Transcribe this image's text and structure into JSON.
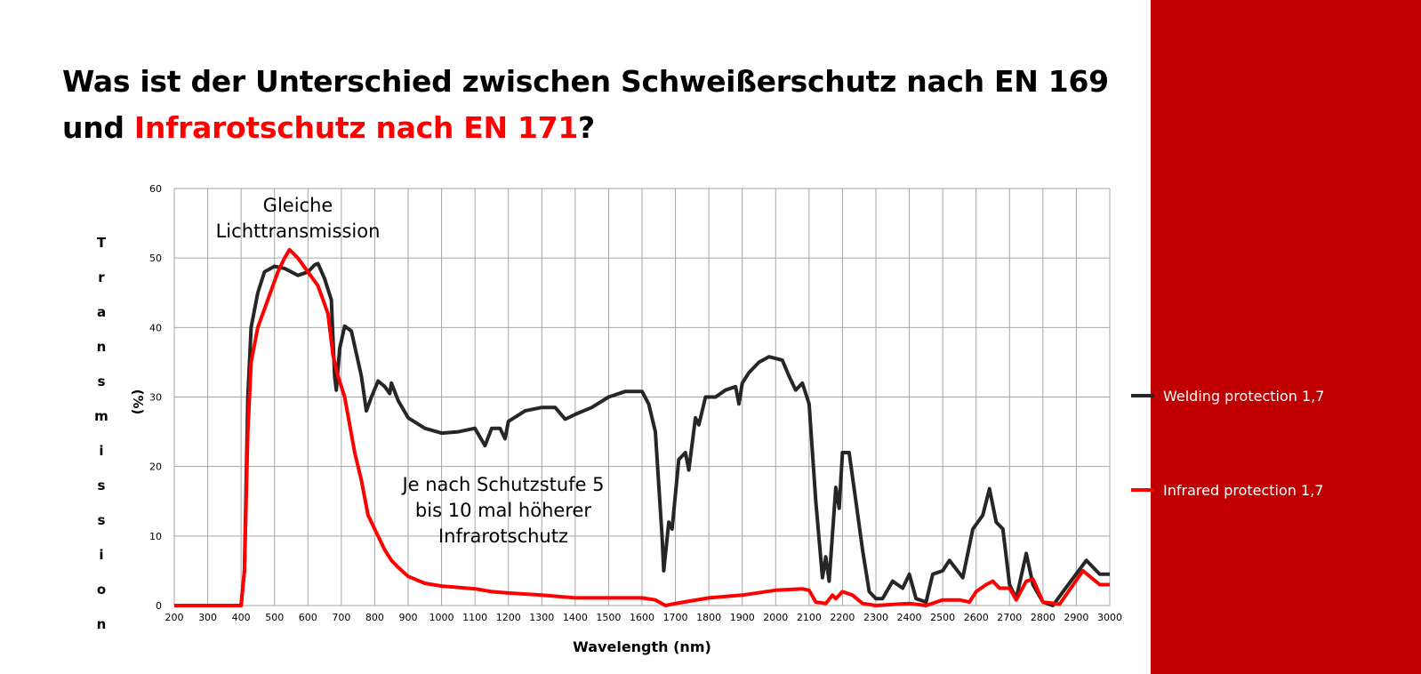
{
  "slide": {
    "title_line1": "Was ist der Unterschied zwischen Schweißerschutz nach EN 169",
    "title_line2_prefix": "und ",
    "title_line2_highlight": "Infrarotschutz nach EN 171",
    "title_line2_suffix": "?",
    "accent_color": "#c00000",
    "highlight_color": "#ff0000"
  },
  "chart_data": {
    "type": "line",
    "xlabel": "Wavelength (nm)",
    "ylabel": "Transmission",
    "ylabel_unit": "(%)",
    "xlim": [
      200,
      3000
    ],
    "ylim": [
      0,
      60
    ],
    "grid": true,
    "legend_placement": "right",
    "x_ticks": [
      200,
      300,
      400,
      500,
      600,
      700,
      800,
      900,
      1000,
      1100,
      1200,
      1300,
      1400,
      1500,
      1600,
      1700,
      1800,
      1900,
      2000,
      2100,
      2200,
      2300,
      2400,
      2500,
      2600,
      2700,
      2800,
      2900,
      3000
    ],
    "y_ticks": [
      0,
      10,
      20,
      30,
      40,
      50,
      60
    ],
    "annotations": [
      {
        "lines": [
          "Gleiche",
          "Lichttransmission"
        ]
      },
      {
        "lines": [
          "Je nach Schutzstufe 5",
          "bis 10 mal höherer",
          "Infrarotschutz"
        ]
      }
    ],
    "series": [
      {
        "name": "Welding protection 1,7",
        "color": "#262626",
        "points": [
          [
            200,
            0
          ],
          [
            400,
            0
          ],
          [
            410,
            5
          ],
          [
            420,
            30
          ],
          [
            430,
            40
          ],
          [
            450,
            45
          ],
          [
            470,
            48
          ],
          [
            500,
            48.8
          ],
          [
            530,
            48.5
          ],
          [
            570,
            47.5
          ],
          [
            600,
            48
          ],
          [
            620,
            49
          ],
          [
            630,
            49.2
          ],
          [
            650,
            47
          ],
          [
            670,
            44
          ],
          [
            680,
            33
          ],
          [
            685,
            31
          ],
          [
            695,
            37
          ],
          [
            710,
            40.2
          ],
          [
            730,
            39.5
          ],
          [
            760,
            33
          ],
          [
            775,
            28
          ],
          [
            790,
            30
          ],
          [
            810,
            32.3
          ],
          [
            830,
            31.5
          ],
          [
            845,
            30.5
          ],
          [
            850,
            32
          ],
          [
            870,
            29.5
          ],
          [
            900,
            27
          ],
          [
            950,
            25.5
          ],
          [
            1000,
            24.8
          ],
          [
            1050,
            25
          ],
          [
            1100,
            25.5
          ],
          [
            1130,
            23
          ],
          [
            1150,
            25.5
          ],
          [
            1175,
            25.5
          ],
          [
            1190,
            24
          ],
          [
            1200,
            26.5
          ],
          [
            1250,
            28
          ],
          [
            1300,
            28.5
          ],
          [
            1340,
            28.5
          ],
          [
            1370,
            26.8
          ],
          [
            1400,
            27.5
          ],
          [
            1450,
            28.5
          ],
          [
            1500,
            30
          ],
          [
            1550,
            30.8
          ],
          [
            1600,
            30.8
          ],
          [
            1620,
            29
          ],
          [
            1640,
            25
          ],
          [
            1660,
            10
          ],
          [
            1665,
            5
          ],
          [
            1680,
            12
          ],
          [
            1690,
            11
          ],
          [
            1710,
            21
          ],
          [
            1730,
            22
          ],
          [
            1740,
            19.5
          ],
          [
            1760,
            27
          ],
          [
            1770,
            26
          ],
          [
            1790,
            30
          ],
          [
            1820,
            30
          ],
          [
            1850,
            31
          ],
          [
            1880,
            31.5
          ],
          [
            1890,
            29
          ],
          [
            1900,
            32
          ],
          [
            1920,
            33.5
          ],
          [
            1950,
            35
          ],
          [
            1980,
            35.8
          ],
          [
            2020,
            35.3
          ],
          [
            2040,
            33
          ],
          [
            2060,
            31
          ],
          [
            2080,
            32
          ],
          [
            2100,
            29
          ],
          [
            2120,
            15
          ],
          [
            2140,
            4
          ],
          [
            2150,
            7
          ],
          [
            2160,
            3.5
          ],
          [
            2180,
            17
          ],
          [
            2190,
            14
          ],
          [
            2200,
            22
          ],
          [
            2220,
            22
          ],
          [
            2240,
            15
          ],
          [
            2260,
            8
          ],
          [
            2280,
            2
          ],
          [
            2300,
            1
          ],
          [
            2320,
            1
          ],
          [
            2350,
            3.5
          ],
          [
            2380,
            2.5
          ],
          [
            2400,
            4.5
          ],
          [
            2420,
            1
          ],
          [
            2450,
            0.5
          ],
          [
            2470,
            4.5
          ],
          [
            2500,
            5
          ],
          [
            2520,
            6.5
          ],
          [
            2560,
            4
          ],
          [
            2590,
            11
          ],
          [
            2620,
            13
          ],
          [
            2640,
            16.8
          ],
          [
            2660,
            12
          ],
          [
            2680,
            11
          ],
          [
            2700,
            3
          ],
          [
            2720,
            1
          ],
          [
            2750,
            7.5
          ],
          [
            2770,
            3
          ],
          [
            2800,
            0.5
          ],
          [
            2830,
            0
          ],
          [
            2860,
            2
          ],
          [
            2930,
            6.5
          ],
          [
            2970,
            4.5
          ],
          [
            3000,
            4.5
          ]
        ]
      },
      {
        "name": "Infrared protection 1,7",
        "color": "#ff0000",
        "points": [
          [
            200,
            0
          ],
          [
            400,
            0
          ],
          [
            410,
            5
          ],
          [
            420,
            25
          ],
          [
            430,
            35
          ],
          [
            450,
            40
          ],
          [
            480,
            44
          ],
          [
            510,
            48
          ],
          [
            530,
            50
          ],
          [
            545,
            51.2
          ],
          [
            570,
            50
          ],
          [
            600,
            48
          ],
          [
            630,
            46
          ],
          [
            660,
            42
          ],
          [
            675,
            36
          ],
          [
            690,
            33
          ],
          [
            710,
            30
          ],
          [
            740,
            22
          ],
          [
            760,
            18
          ],
          [
            780,
            13
          ],
          [
            800,
            11
          ],
          [
            830,
            8
          ],
          [
            850,
            6.5
          ],
          [
            870,
            5.5
          ],
          [
            900,
            4.2
          ],
          [
            950,
            3.2
          ],
          [
            1000,
            2.8
          ],
          [
            1100,
            2.4
          ],
          [
            1150,
            2
          ],
          [
            1200,
            1.8
          ],
          [
            1300,
            1.5
          ],
          [
            1400,
            1.1
          ],
          [
            1600,
            1.1
          ],
          [
            1640,
            0.8
          ],
          [
            1670,
            0
          ],
          [
            1700,
            0.3
          ],
          [
            1800,
            1.1
          ],
          [
            1900,
            1.5
          ],
          [
            2000,
            2.2
          ],
          [
            2080,
            2.4
          ],
          [
            2100,
            2.2
          ],
          [
            2120,
            0.5
          ],
          [
            2150,
            0.3
          ],
          [
            2170,
            1.5
          ],
          [
            2180,
            1
          ],
          [
            2200,
            2
          ],
          [
            2230,
            1.5
          ],
          [
            2260,
            0.3
          ],
          [
            2300,
            0
          ],
          [
            2400,
            0.3
          ],
          [
            2450,
            0
          ],
          [
            2500,
            0.8
          ],
          [
            2550,
            0.8
          ],
          [
            2580,
            0.5
          ],
          [
            2600,
            2
          ],
          [
            2630,
            3
          ],
          [
            2650,
            3.5
          ],
          [
            2670,
            2.5
          ],
          [
            2700,
            2.5
          ],
          [
            2720,
            0.8
          ],
          [
            2750,
            3.5
          ],
          [
            2770,
            3.8
          ],
          [
            2800,
            0.5
          ],
          [
            2850,
            0.2
          ],
          [
            2920,
            5
          ],
          [
            2970,
            3
          ],
          [
            3000,
            3
          ]
        ]
      }
    ]
  }
}
